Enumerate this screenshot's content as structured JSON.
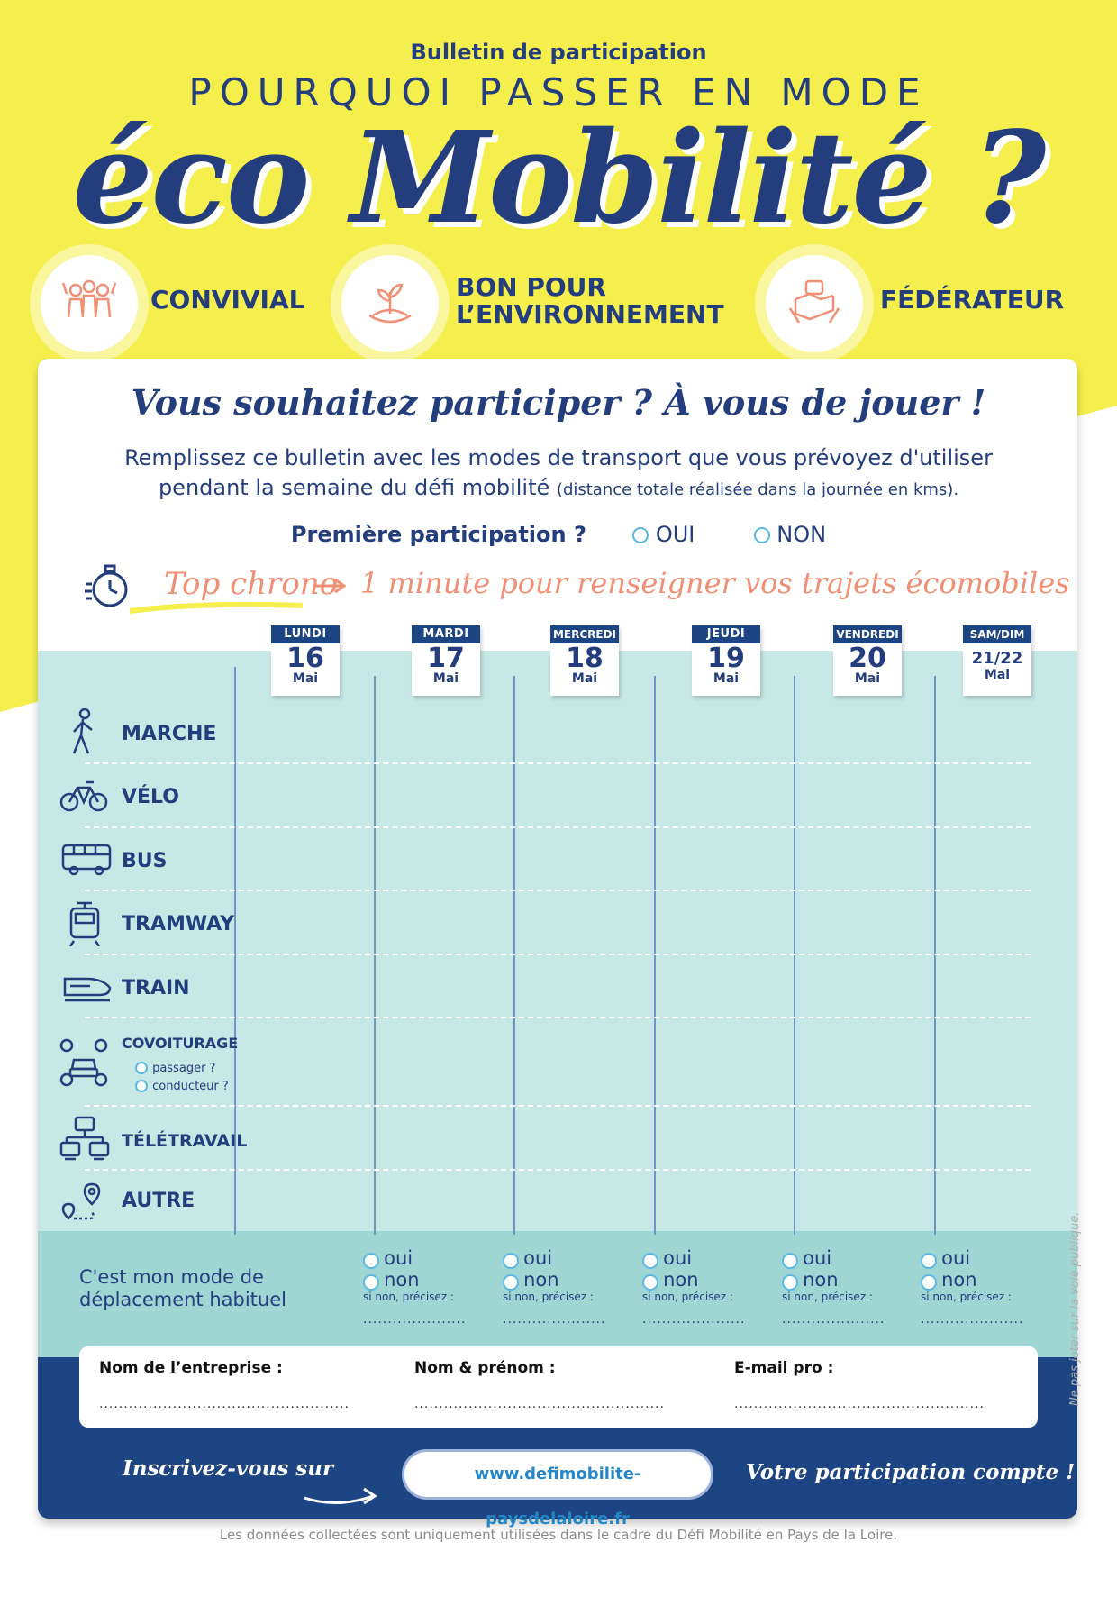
{
  "header": {
    "bulletin_title": "Bulletin de participation",
    "headline_line1": "POURQUOI PASSER EN MODE",
    "headline_line2": "éco Mobilité ?"
  },
  "benefits": [
    {
      "label_line1": "CONVIVIAL",
      "label_line2": "",
      "icon": "people-cheering-icon"
    },
    {
      "label_line1": "BON POUR",
      "label_line2": "L’ENVIRONNEMENT",
      "icon": "plant-globe-icon"
    },
    {
      "label_line1": "FÉDÉRATEUR",
      "label_line2": "",
      "icon": "hands-together-icon"
    }
  ],
  "cta": {
    "title": "Vous souhaitez participer ? À vous de jouer !",
    "intro_line1": "Remplissez ce bulletin avec les modes de transport que vous prévoyez d'utiliser",
    "intro_line2": "pendant la semaine du défi mobilité",
    "intro_small": "(distance totale réalisée dans la journée en kms)."
  },
  "first_participation": {
    "question": "Première participation ?",
    "option_yes": "OUI",
    "option_no": "NON"
  },
  "chrono": {
    "label": "Top chrono",
    "text": "1 minute pour renseigner vos trajets écomobiles"
  },
  "days": [
    {
      "name": "LUNDI",
      "num": "16",
      "month": "Mai"
    },
    {
      "name": "MARDI",
      "num": "17",
      "month": "Mai"
    },
    {
      "name": "MERCREDI",
      "num": "18",
      "month": "Mai"
    },
    {
      "name": "JEUDI",
      "num": "19",
      "month": "Mai"
    },
    {
      "name": "VENDREDI",
      "num": "20",
      "month": "Mai"
    },
    {
      "name": "SAM/DIM",
      "num": "21/22",
      "month": "Mai"
    }
  ],
  "modes": [
    {
      "label": "MARCHE",
      "icon": "walking-person-icon"
    },
    {
      "label": "VÉLO",
      "icon": "bicycle-icon"
    },
    {
      "label": "BUS",
      "icon": "bus-icon"
    },
    {
      "label": "TRAMWAY",
      "icon": "tram-icon"
    },
    {
      "label": "TRAIN",
      "icon": "train-icon"
    },
    {
      "label": "COVOITURAGE",
      "icon": "carpool-icon",
      "sub_options": [
        "passager ?",
        "conducteur ?"
      ]
    },
    {
      "label": "TÉLÉTRAVAIL",
      "icon": "remote-work-icon"
    },
    {
      "label": "AUTRE",
      "icon": "route-pin-icon"
    }
  ],
  "habit": {
    "label_line1": "C'est mon mode de",
    "label_line2": "déplacement habituel",
    "yes": "oui",
    "no": "non",
    "specify": "si non, précisez :",
    "dots": "....................."
  },
  "form": {
    "company_label": "Nom de l’entreprise :",
    "name_label": "Nom & prénom :",
    "email_label": "E-mail pro :",
    "dots": "..................................................."
  },
  "signup": {
    "label": "Inscrivez-vous sur",
    "url": "www.defimobilite-paysdelaloire.fr",
    "slogan": "Votre participation compte !"
  },
  "footer_note": "Les données collectées sont uniquement utilisées dans le cadre du Défi Mobilité en Pays de la Loire.",
  "side_note": "Ne pas jeter sur la voie publique.",
  "colors": {
    "yellow": "#f5ef4e",
    "navy": "#233d7d",
    "teal": "#c7e8e5",
    "coral": "#f08f73"
  }
}
